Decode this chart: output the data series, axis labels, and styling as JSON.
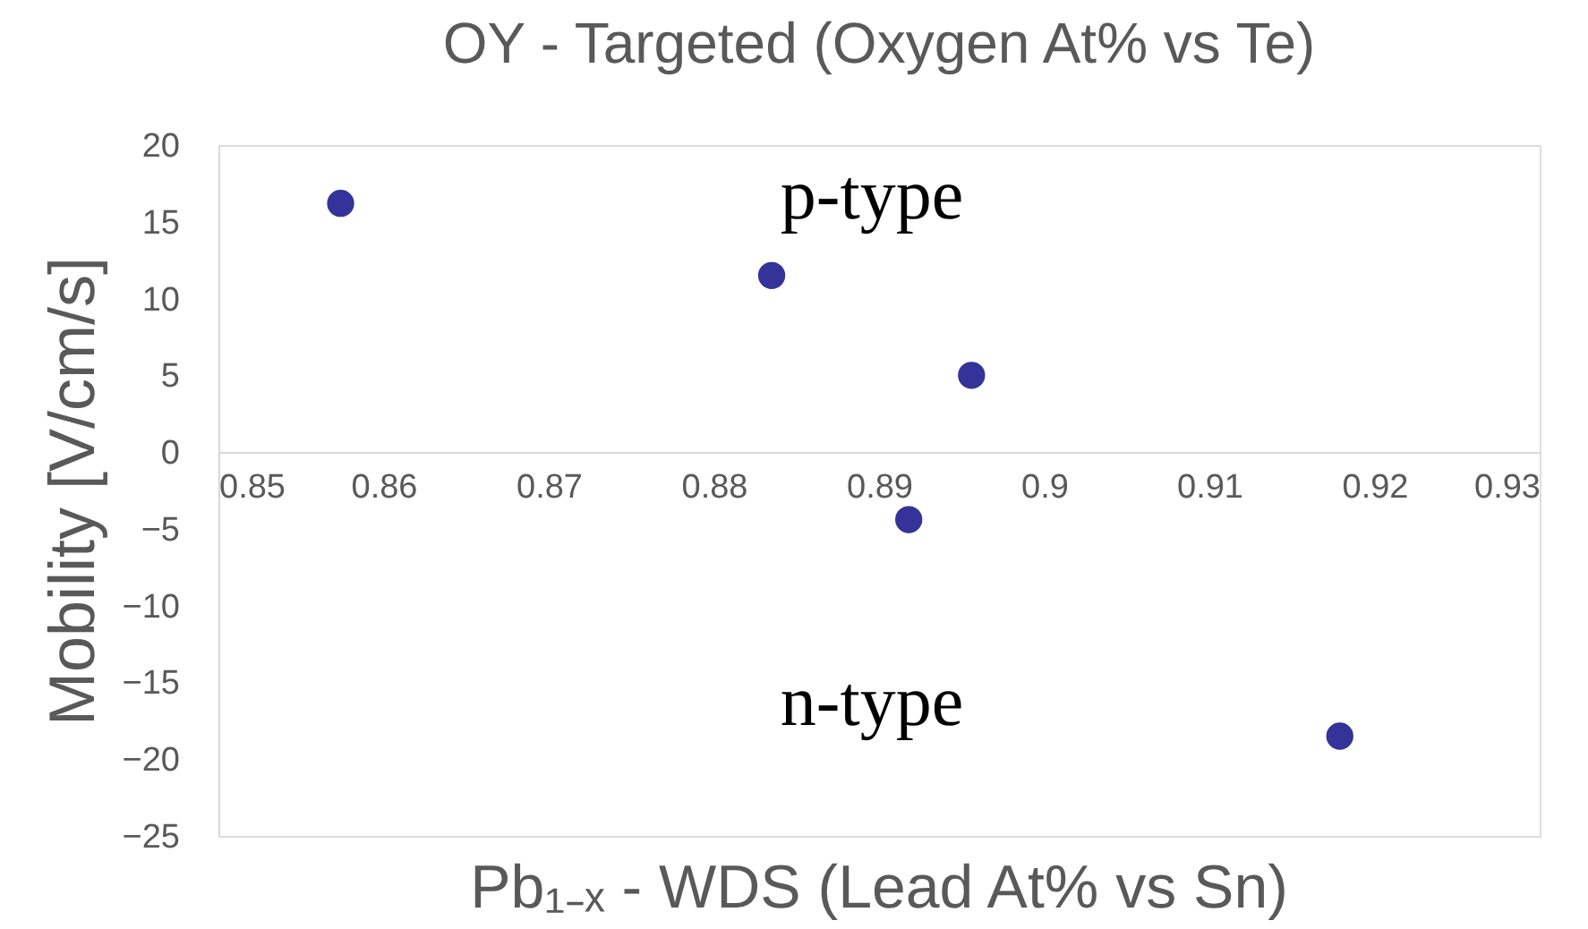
{
  "chart_data": {
    "type": "scatter",
    "title": "OY - Targeted (Oxygen At% vs Te)",
    "xlabel": "Pb₁₋ₓ - WDS (Lead At% vs Sn)",
    "ylabel": "Mobility [V/cm/s]",
    "x": [
      0.8574,
      0.8835,
      0.8956,
      0.8918,
      0.9179
    ],
    "series": [
      {
        "color": "#333399",
        "values": [
          16.2,
          11.5,
          5.0,
          -4.4,
          -18.5
        ]
      }
    ],
    "xlim": [
      0.85,
      0.93
    ],
    "xticks": [
      0.85,
      0.86,
      0.87,
      0.88,
      0.89,
      0.9,
      0.91,
      0.92,
      0.93
    ],
    "ylim": [
      -25,
      20
    ],
    "yticks": [
      -25,
      -20,
      -15,
      -10,
      -5,
      0,
      5,
      10,
      15,
      20
    ],
    "annotations": [
      "p-type",
      "n-type"
    ],
    "grid": false
  }
}
